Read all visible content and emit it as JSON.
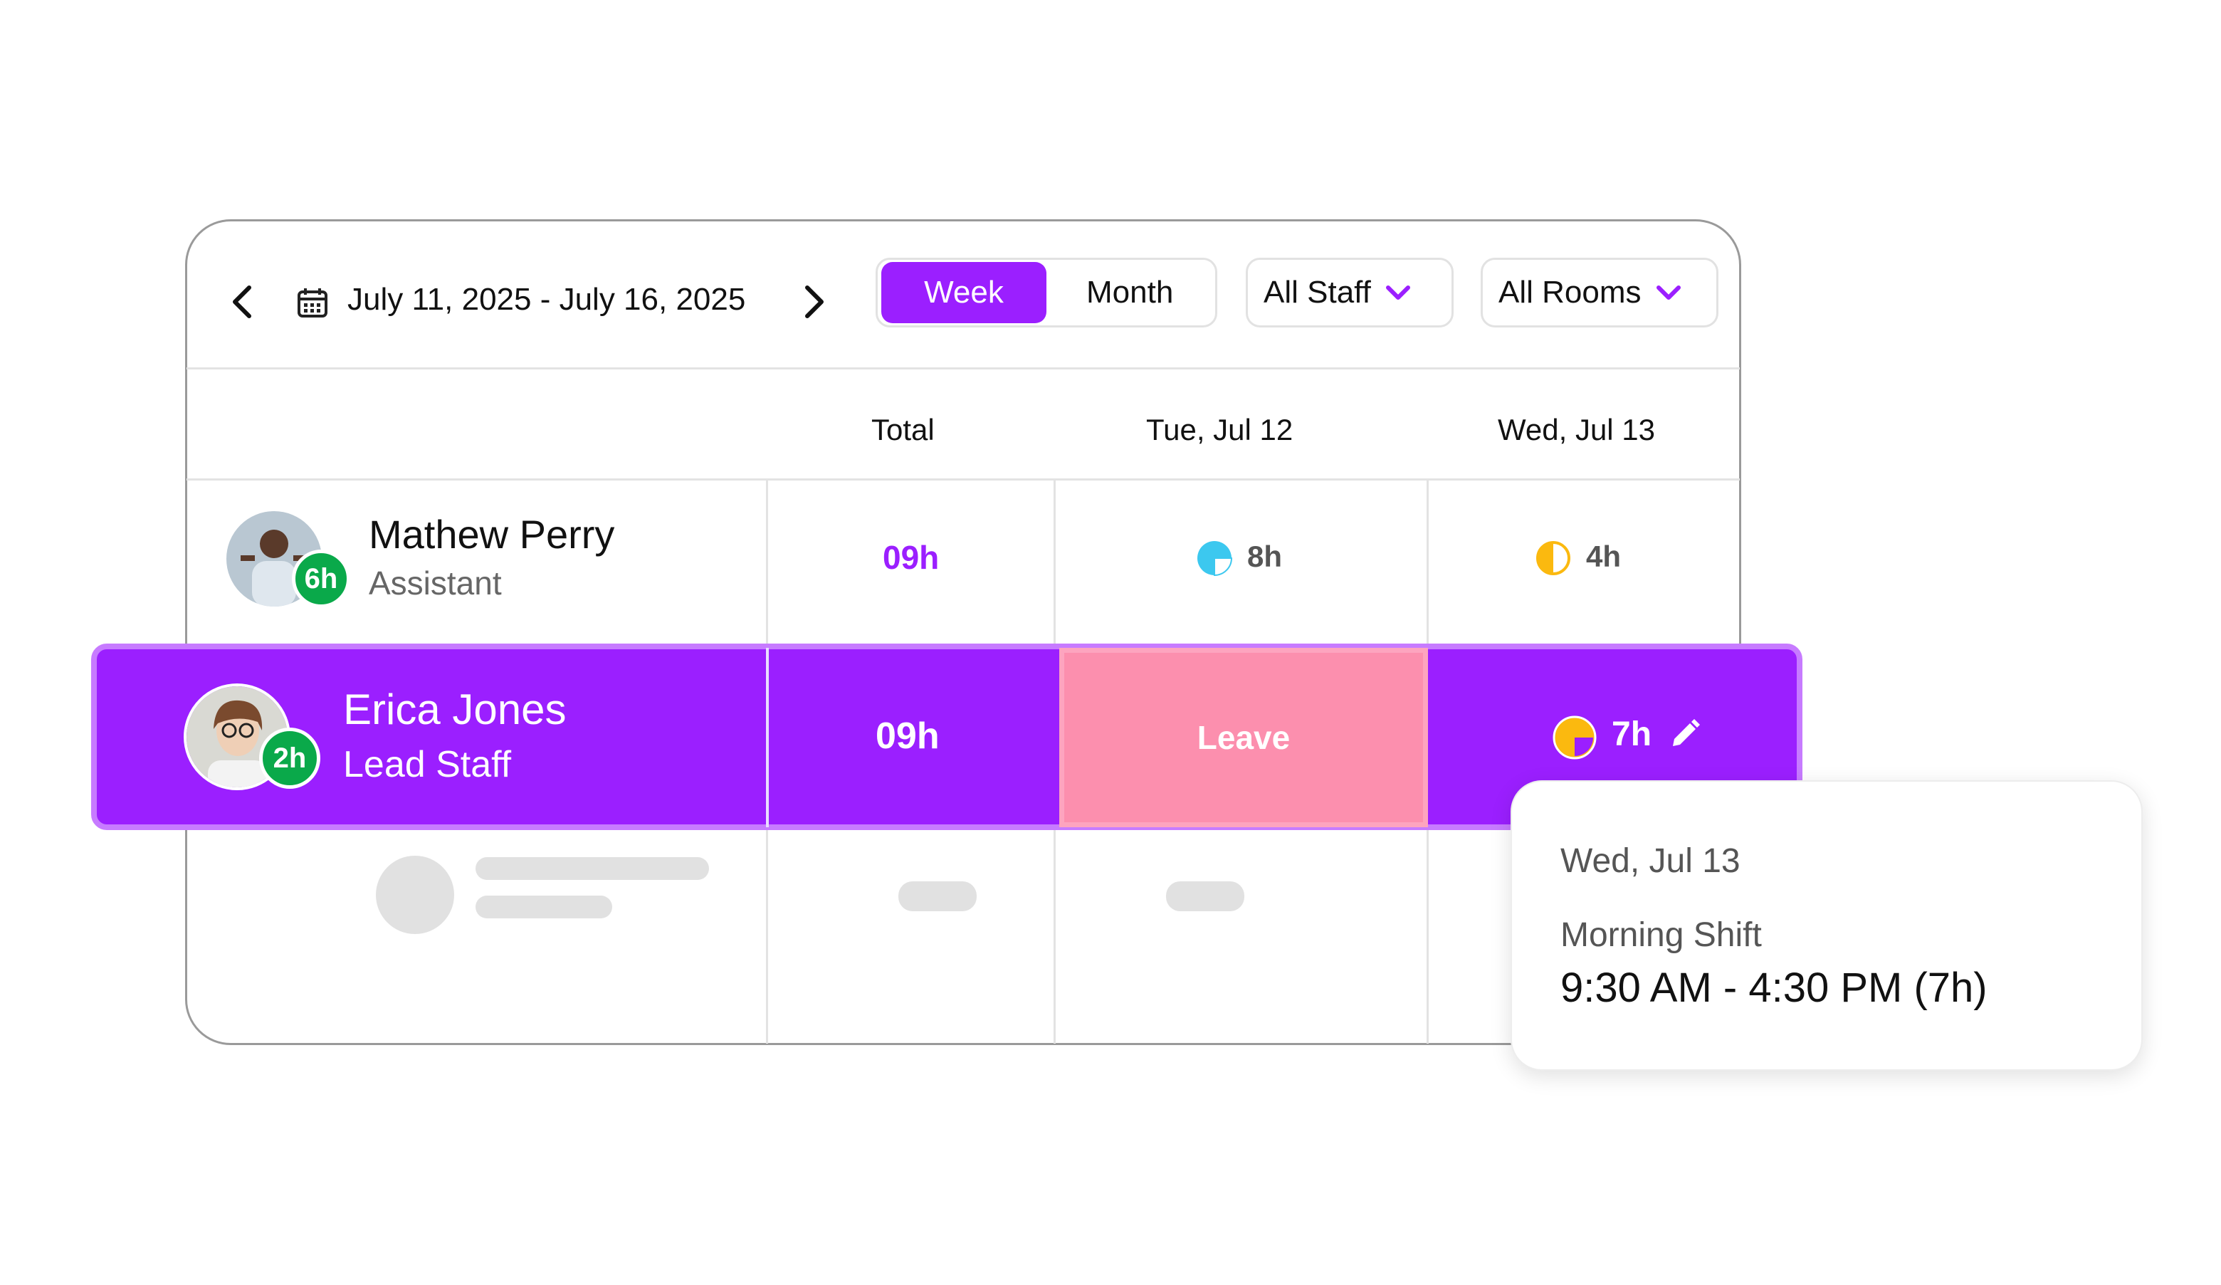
{
  "header": {
    "date_range": "July 11, 2025 - July 16, 2025",
    "view_tabs": [
      {
        "label": "Week",
        "active": true
      },
      {
        "label": "Month",
        "active": false
      }
    ],
    "staff_filter": "All Staff",
    "room_filter": "All Rooms"
  },
  "columns": {
    "total": "Total",
    "day1": "Tue, Jul 12",
    "day2": "Wed, Jul 13"
  },
  "rows": [
    {
      "name": "Mathew Perry",
      "role": "Assistant",
      "badge": "6h",
      "total": "09h",
      "day1": "8h",
      "day2": "4h"
    },
    {
      "name": "Erica Jones",
      "role": "Lead Staff",
      "badge": "2h",
      "total": "09h",
      "day1": "Leave",
      "day2": "7h"
    }
  ],
  "tooltip": {
    "date": "Wed, Jul 13",
    "shift": "Morning Shift",
    "time": "9:30 AM - 4:30 PM (7h)"
  },
  "colors": {
    "accent": "#9b1fff",
    "leave": "#fc8fae",
    "badge": "#0aa94a",
    "cyan": "#3cc8ef",
    "yellow": "#fbb90f"
  },
  "icons": [
    "chevron-left-icon",
    "calendar-icon",
    "chevron-right-icon",
    "chevron-down-icon",
    "pie-icon",
    "pencil-icon"
  ]
}
